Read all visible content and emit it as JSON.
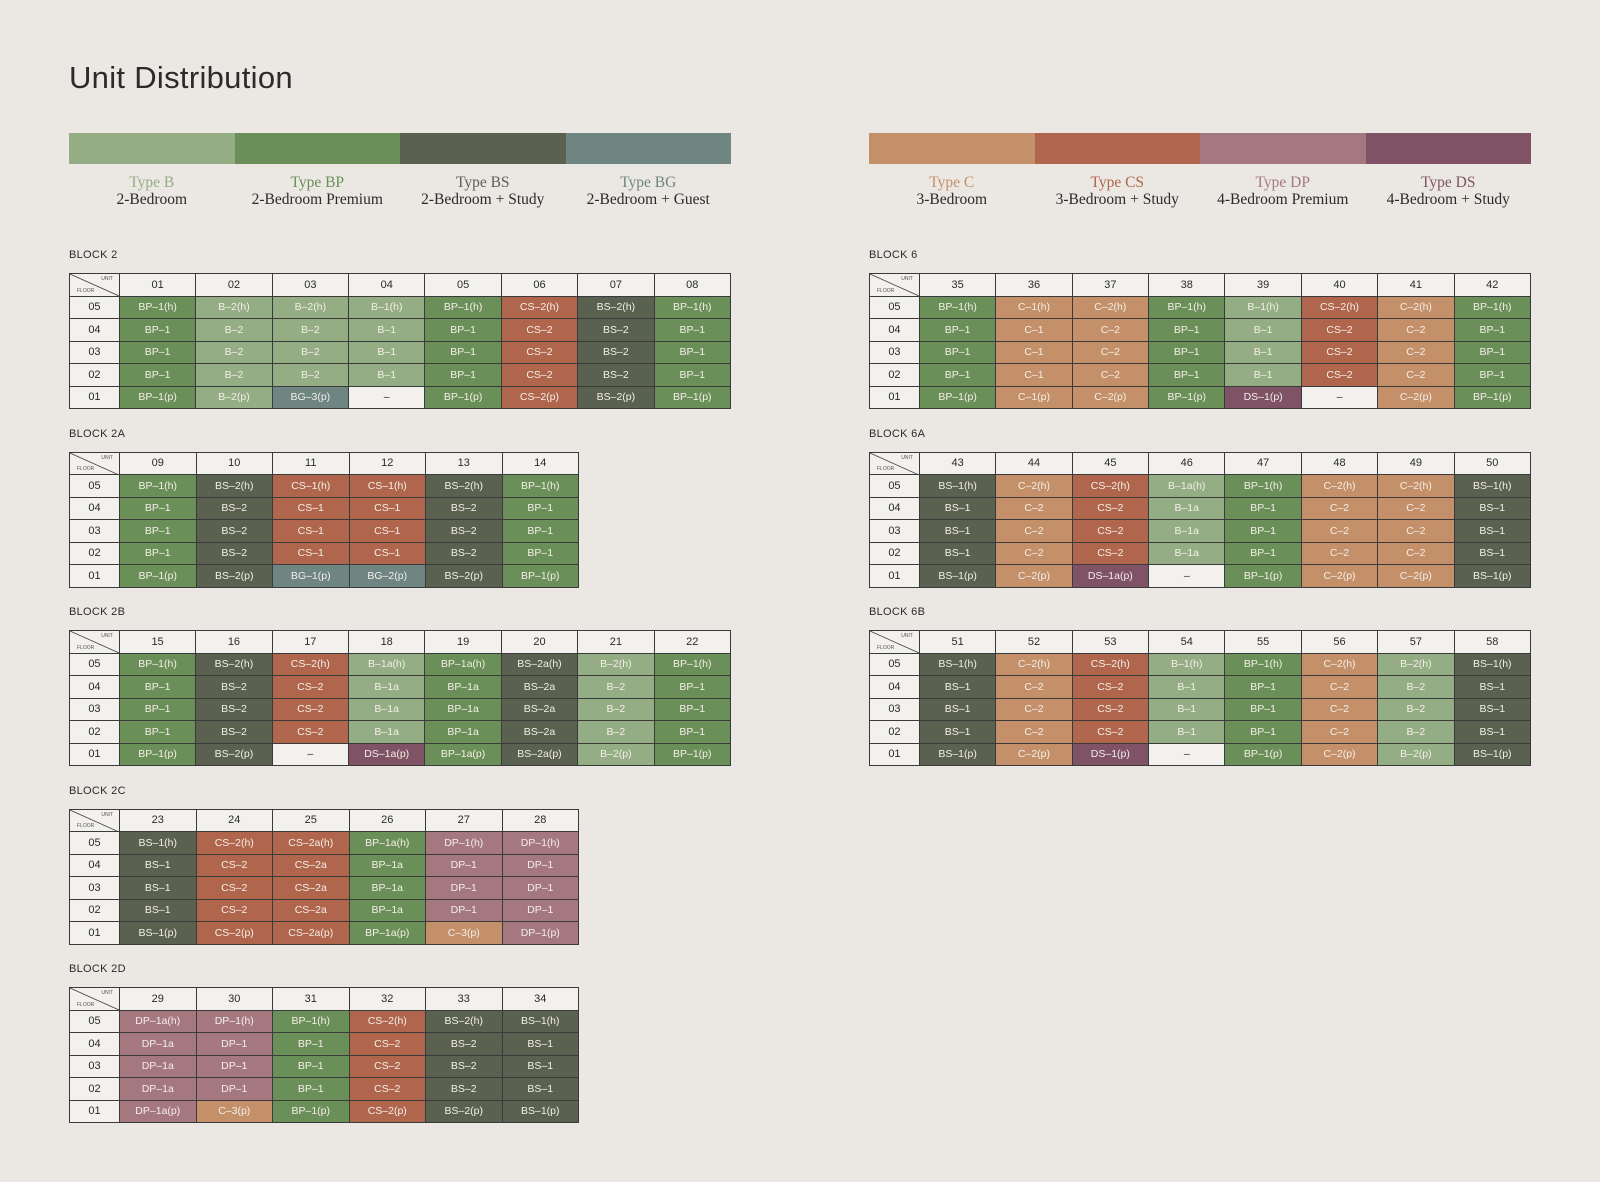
{
  "title": "Unit Distribution",
  "corner": {
    "unit": "UNIT",
    "floor": "FLOOR"
  },
  "colors": {
    "B": "#94ad84",
    "BP": "#6b8f58",
    "BS": "#5a6150",
    "BG": "#6e8582",
    "C": "#c4906a",
    "CS": "#b0664c",
    "DP": "#a57880",
    "DS": "#7f5265",
    "empty": "#f3f1ed"
  },
  "legend_left": [
    {
      "code": "B",
      "name": "Type B",
      "desc": "2-Bedroom"
    },
    {
      "code": "BP",
      "name": "Type BP",
      "desc": "2-Bedroom Premium"
    },
    {
      "code": "BS",
      "name": "Type BS",
      "desc": "2-Bedroom + Study"
    },
    {
      "code": "BG",
      "name": "Type BG",
      "desc": "2-Bedroom + Guest"
    }
  ],
  "legend_right": [
    {
      "code": "C",
      "name": "Type C",
      "desc": "3-Bedroom"
    },
    {
      "code": "CS",
      "name": "Type CS",
      "desc": "3-Bedroom + Study"
    },
    {
      "code": "DP",
      "name": "Type DP",
      "desc": "4-Bedroom Premium"
    },
    {
      "code": "DS",
      "name": "Type DS",
      "desc": "4-Bedroom + Study"
    }
  ],
  "blocks": [
    {
      "label": "BLOCK 2",
      "column": "left",
      "units": [
        "01",
        "02",
        "03",
        "04",
        "05",
        "06",
        "07",
        "08"
      ],
      "rows": [
        {
          "floor": "05",
          "cells": [
            "BP–1(h)",
            "B–2(h)",
            "B–2(h)",
            "B–1(h)",
            "BP–1(h)",
            "CS–2(h)",
            "BS–2(h)",
            "BP–1(h)"
          ]
        },
        {
          "floor": "04",
          "cells": [
            "BP–1",
            "B–2",
            "B–2",
            "B–1",
            "BP–1",
            "CS–2",
            "BS–2",
            "BP–1"
          ]
        },
        {
          "floor": "03",
          "cells": [
            "BP–1",
            "B–2",
            "B–2",
            "B–1",
            "BP–1",
            "CS–2",
            "BS–2",
            "BP–1"
          ]
        },
        {
          "floor": "02",
          "cells": [
            "BP–1",
            "B–2",
            "B–2",
            "B–1",
            "BP–1",
            "CS–2",
            "BS–2",
            "BP–1"
          ]
        },
        {
          "floor": "01",
          "cells": [
            "BP–1(p)",
            "B–2(p)",
            "BG–3(p)",
            "–",
            "BP–1(p)",
            "CS–2(p)",
            "BS–2(p)",
            "BP–1(p)"
          ]
        }
      ]
    },
    {
      "label": "BLOCK 2A",
      "column": "left",
      "units": [
        "09",
        "10",
        "11",
        "12",
        "13",
        "14"
      ],
      "rows": [
        {
          "floor": "05",
          "cells": [
            "BP–1(h)",
            "BS–2(h)",
            "CS–1(h)",
            "CS–1(h)",
            "BS–2(h)",
            "BP–1(h)"
          ]
        },
        {
          "floor": "04",
          "cells": [
            "BP–1",
            "BS–2",
            "CS–1",
            "CS–1",
            "BS–2",
            "BP–1"
          ]
        },
        {
          "floor": "03",
          "cells": [
            "BP–1",
            "BS–2",
            "CS–1",
            "CS–1",
            "BS–2",
            "BP–1"
          ]
        },
        {
          "floor": "02",
          "cells": [
            "BP–1",
            "BS–2",
            "CS–1",
            "CS–1",
            "BS–2",
            "BP–1"
          ]
        },
        {
          "floor": "01",
          "cells": [
            "BP–1(p)",
            "BS–2(p)",
            "BG–1(p)",
            "BG–2(p)",
            "BS–2(p)",
            "BP–1(p)"
          ]
        }
      ]
    },
    {
      "label": "BLOCK 2B",
      "column": "left",
      "units": [
        "15",
        "16",
        "17",
        "18",
        "19",
        "20",
        "21",
        "22"
      ],
      "rows": [
        {
          "floor": "05",
          "cells": [
            "BP–1(h)",
            "BS–2(h)",
            "CS–2(h)",
            "B–1a(h)",
            "BP–1a(h)",
            "BS–2a(h)",
            "B–2(h)",
            "BP–1(h)"
          ]
        },
        {
          "floor": "04",
          "cells": [
            "BP–1",
            "BS–2",
            "CS–2",
            "B–1a",
            "BP–1a",
            "BS–2a",
            "B–2",
            "BP–1"
          ]
        },
        {
          "floor": "03",
          "cells": [
            "BP–1",
            "BS–2",
            "CS–2",
            "B–1a",
            "BP–1a",
            "BS–2a",
            "B–2",
            "BP–1"
          ]
        },
        {
          "floor": "02",
          "cells": [
            "BP–1",
            "BS–2",
            "CS–2",
            "B–1a",
            "BP–1a",
            "BS–2a",
            "B–2",
            "BP–1"
          ]
        },
        {
          "floor": "01",
          "cells": [
            "BP–1(p)",
            "BS–2(p)",
            "–",
            "DS–1a(p)",
            "BP–1a(p)",
            "BS–2a(p)",
            "B–2(p)",
            "BP–1(p)"
          ]
        }
      ]
    },
    {
      "label": "BLOCK 2C",
      "column": "left",
      "units": [
        "23",
        "24",
        "25",
        "26",
        "27",
        "28"
      ],
      "rows": [
        {
          "floor": "05",
          "cells": [
            "BS–1(h)",
            "CS–2(h)",
            "CS–2a(h)",
            "BP–1a(h)",
            "DP–1(h)",
            "DP–1(h)"
          ]
        },
        {
          "floor": "04",
          "cells": [
            "BS–1",
            "CS–2",
            "CS–2a",
            "BP–1a",
            "DP–1",
            "DP–1"
          ]
        },
        {
          "floor": "03",
          "cells": [
            "BS–1",
            "CS–2",
            "CS–2a",
            "BP–1a",
            "DP–1",
            "DP–1"
          ]
        },
        {
          "floor": "02",
          "cells": [
            "BS–1",
            "CS–2",
            "CS–2a",
            "BP–1a",
            "DP–1",
            "DP–1"
          ]
        },
        {
          "floor": "01",
          "cells": [
            "BS–1(p)",
            "CS–2(p)",
            "CS–2a(p)",
            "BP–1a(p)",
            "C–3(p)",
            "DP–1(p)"
          ]
        }
      ]
    },
    {
      "label": "BLOCK 2D",
      "column": "left",
      "units": [
        "29",
        "30",
        "31",
        "32",
        "33",
        "34"
      ],
      "rows": [
        {
          "floor": "05",
          "cells": [
            "DP–1a(h)",
            "DP–1(h)",
            "BP–1(h)",
            "CS–2(h)",
            "BS–2(h)",
            "BS–1(h)"
          ]
        },
        {
          "floor": "04",
          "cells": [
            "DP–1a",
            "DP–1",
            "BP–1",
            "CS–2",
            "BS–2",
            "BS–1"
          ]
        },
        {
          "floor": "03",
          "cells": [
            "DP–1a",
            "DP–1",
            "BP–1",
            "CS–2",
            "BS–2",
            "BS–1"
          ]
        },
        {
          "floor": "02",
          "cells": [
            "DP–1a",
            "DP–1",
            "BP–1",
            "CS–2",
            "BS–2",
            "BS–1"
          ]
        },
        {
          "floor": "01",
          "cells": [
            "DP–1a(p)",
            "C–3(p)",
            "BP–1(p)",
            "CS–2(p)",
            "BS–2(p)",
            "BS–1(p)"
          ]
        }
      ]
    },
    {
      "label": "BLOCK 6",
      "column": "right",
      "units": [
        "35",
        "36",
        "37",
        "38",
        "39",
        "40",
        "41",
        "42"
      ],
      "rows": [
        {
          "floor": "05",
          "cells": [
            "BP–1(h)",
            "C–1(h)",
            "C–2(h)",
            "BP–1(h)",
            "B–1(h)",
            "CS–2(h)",
            "C–2(h)",
            "BP–1(h)"
          ]
        },
        {
          "floor": "04",
          "cells": [
            "BP–1",
            "C–1",
            "C–2",
            "BP–1",
            "B–1",
            "CS–2",
            "C–2",
            "BP–1"
          ]
        },
        {
          "floor": "03",
          "cells": [
            "BP–1",
            "C–1",
            "C–2",
            "BP–1",
            "B–1",
            "CS–2",
            "C–2",
            "BP–1"
          ]
        },
        {
          "floor": "02",
          "cells": [
            "BP–1",
            "C–1",
            "C–2",
            "BP–1",
            "B–1",
            "CS–2",
            "C–2",
            "BP–1"
          ]
        },
        {
          "floor": "01",
          "cells": [
            "BP–1(p)",
            "C–1(p)",
            "C–2(p)",
            "BP–1(p)",
            "DS–1(p)",
            "–",
            "C–2(p)",
            "BP–1(p)"
          ]
        }
      ]
    },
    {
      "label": "BLOCK 6A",
      "column": "right",
      "units": [
        "43",
        "44",
        "45",
        "46",
        "47",
        "48",
        "49",
        "50"
      ],
      "rows": [
        {
          "floor": "05",
          "cells": [
            "BS–1(h)",
            "C–2(h)",
            "CS–2(h)",
            "B–1a(h)",
            "BP–1(h)",
            "C–2(h)",
            "C–2(h)",
            "BS–1(h)"
          ]
        },
        {
          "floor": "04",
          "cells": [
            "BS–1",
            "C–2",
            "CS–2",
            "B–1a",
            "BP–1",
            "C–2",
            "C–2",
            "BS–1"
          ]
        },
        {
          "floor": "03",
          "cells": [
            "BS–1",
            "C–2",
            "CS–2",
            "B–1a",
            "BP–1",
            "C–2",
            "C–2",
            "BS–1"
          ]
        },
        {
          "floor": "02",
          "cells": [
            "BS–1",
            "C–2",
            "CS–2",
            "B–1a",
            "BP–1",
            "C–2",
            "C–2",
            "BS–1"
          ]
        },
        {
          "floor": "01",
          "cells": [
            "BS–1(p)",
            "C–2(p)",
            "DS–1a(p)",
            "–",
            "BP–1(p)",
            "C–2(p)",
            "C–2(p)",
            "BS–1(p)"
          ]
        }
      ]
    },
    {
      "label": "BLOCK 6B",
      "column": "right",
      "units": [
        "51",
        "52",
        "53",
        "54",
        "55",
        "56",
        "57",
        "58"
      ],
      "rows": [
        {
          "floor": "05",
          "cells": [
            "BS–1(h)",
            "C–2(h)",
            "CS–2(h)",
            "B–1(h)",
            "BP–1(h)",
            "C–2(h)",
            "B–2(h)",
            "BS–1(h)"
          ]
        },
        {
          "floor": "04",
          "cells": [
            "BS–1",
            "C–2",
            "CS–2",
            "B–1",
            "BP–1",
            "C–2",
            "B–2",
            "BS–1"
          ]
        },
        {
          "floor": "03",
          "cells": [
            "BS–1",
            "C–2",
            "CS–2",
            "B–1",
            "BP–1",
            "C–2",
            "B–2",
            "BS–1"
          ]
        },
        {
          "floor": "02",
          "cells": [
            "BS–1",
            "C–2",
            "CS–2",
            "B–1",
            "BP–1",
            "C–2",
            "B–2",
            "BS–1"
          ]
        },
        {
          "floor": "01",
          "cells": [
            "BS–1(p)",
            "C–2(p)",
            "DS–1(p)",
            "–",
            "BP–1(p)",
            "C–2(p)",
            "B–2(p)",
            "BS–1(p)"
          ]
        }
      ]
    }
  ]
}
